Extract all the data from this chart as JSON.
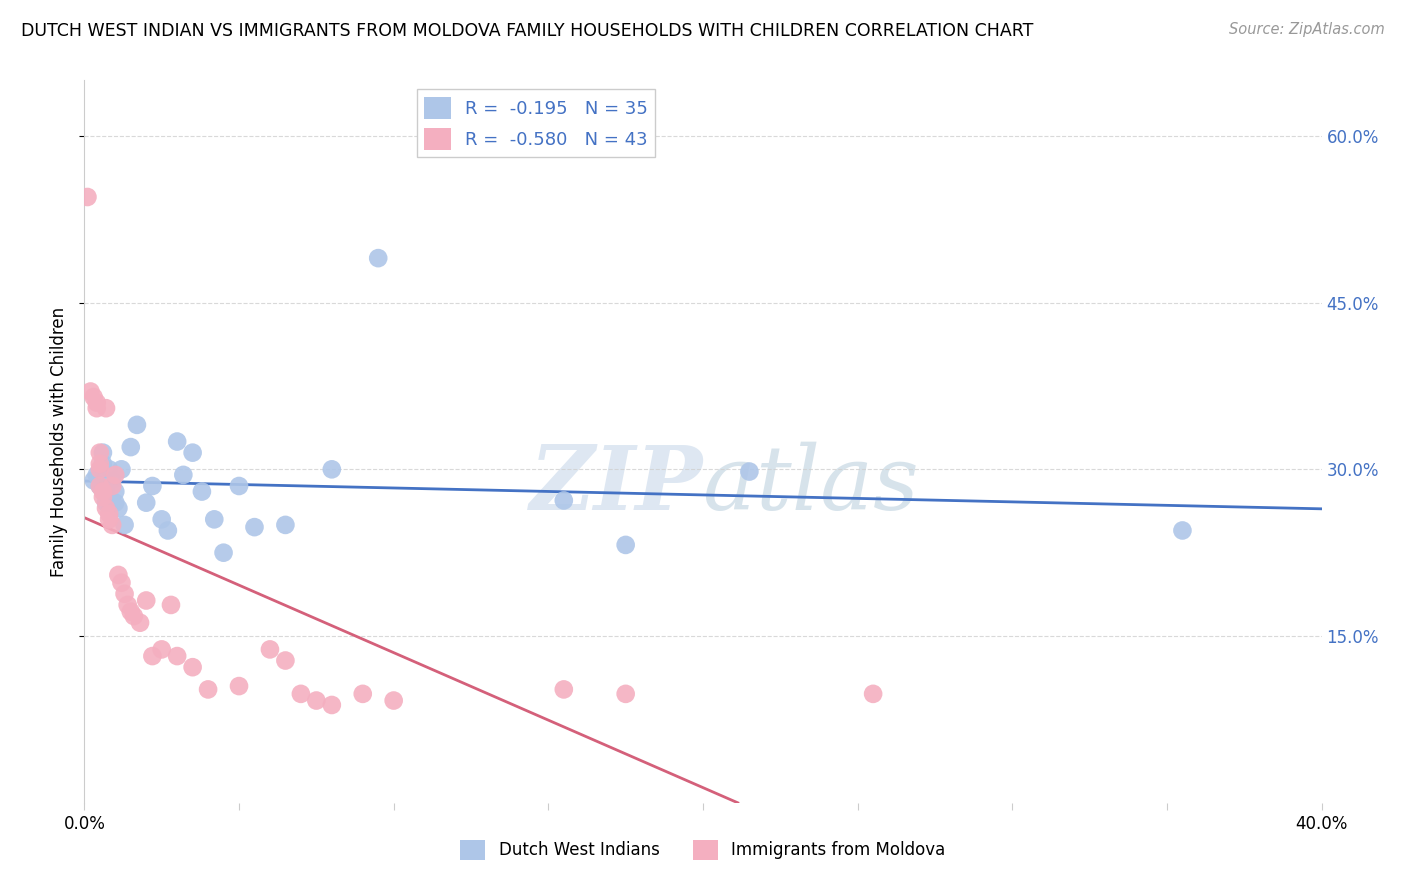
{
  "title": "DUTCH WEST INDIAN VS IMMIGRANTS FROM MOLDOVA FAMILY HOUSEHOLDS WITH CHILDREN CORRELATION CHART",
  "source": "Source: ZipAtlas.com",
  "ylabel": "Family Households with Children",
  "xlim": [
    0.0,
    0.4
  ],
  "ylim": [
    0.0,
    0.65
  ],
  "yticks": [
    0.15,
    0.3,
    0.45,
    0.6
  ],
  "ytick_labels": [
    "15.0%",
    "30.0%",
    "45.0%",
    "60.0%"
  ],
  "xticks": [
    0.0,
    0.05,
    0.1,
    0.15,
    0.2,
    0.25,
    0.3,
    0.35,
    0.4
  ],
  "xtick_labels": [
    "0.0%",
    "",
    "",
    "",
    "",
    "",
    "",
    "",
    "40.0%"
  ],
  "blue_color": "#aec6e8",
  "pink_color": "#f4afc0",
  "blue_line_color": "#4472C4",
  "pink_line_color": "#d4607a",
  "legend_blue_label": "R =  -0.195   N = 35",
  "legend_pink_label": "R =  -0.580   N = 43",
  "blue_scatter_x": [
    0.003,
    0.004,
    0.005,
    0.006,
    0.006,
    0.007,
    0.007,
    0.008,
    0.009,
    0.01,
    0.01,
    0.011,
    0.012,
    0.013,
    0.015,
    0.017,
    0.02,
    0.022,
    0.025,
    0.027,
    0.03,
    0.032,
    0.035,
    0.038,
    0.042,
    0.045,
    0.05,
    0.055,
    0.065,
    0.08,
    0.095,
    0.155,
    0.175,
    0.215,
    0.355
  ],
  "blue_scatter_y": [
    0.29,
    0.295,
    0.285,
    0.305,
    0.315,
    0.28,
    0.27,
    0.3,
    0.29,
    0.27,
    0.28,
    0.265,
    0.3,
    0.25,
    0.32,
    0.34,
    0.27,
    0.285,
    0.255,
    0.245,
    0.325,
    0.295,
    0.315,
    0.28,
    0.255,
    0.225,
    0.285,
    0.248,
    0.25,
    0.3,
    0.49,
    0.272,
    0.232,
    0.298,
    0.245
  ],
  "pink_scatter_x": [
    0.001,
    0.002,
    0.003,
    0.004,
    0.004,
    0.005,
    0.005,
    0.005,
    0.005,
    0.006,
    0.006,
    0.007,
    0.007,
    0.008,
    0.008,
    0.009,
    0.009,
    0.01,
    0.011,
    0.012,
    0.013,
    0.014,
    0.015,
    0.016,
    0.018,
    0.02,
    0.022,
    0.025,
    0.028,
    0.03,
    0.035,
    0.04,
    0.05,
    0.06,
    0.065,
    0.07,
    0.075,
    0.08,
    0.09,
    0.1,
    0.155,
    0.175,
    0.255
  ],
  "pink_scatter_y": [
    0.545,
    0.37,
    0.365,
    0.36,
    0.355,
    0.3,
    0.305,
    0.315,
    0.285,
    0.28,
    0.275,
    0.265,
    0.355,
    0.26,
    0.255,
    0.25,
    0.285,
    0.295,
    0.205,
    0.198,
    0.188,
    0.178,
    0.172,
    0.168,
    0.162,
    0.182,
    0.132,
    0.138,
    0.178,
    0.132,
    0.122,
    0.102,
    0.105,
    0.138,
    0.128,
    0.098,
    0.092,
    0.088,
    0.098,
    0.092,
    0.102,
    0.098,
    0.098
  ],
  "watermark_zip": "ZIP",
  "watermark_atlas": "atlas",
  "background_color": "#ffffff",
  "grid_color": "#d0d0d0",
  "legend_label_blue": "Dutch West Indians",
  "legend_label_pink": "Immigrants from Moldova"
}
